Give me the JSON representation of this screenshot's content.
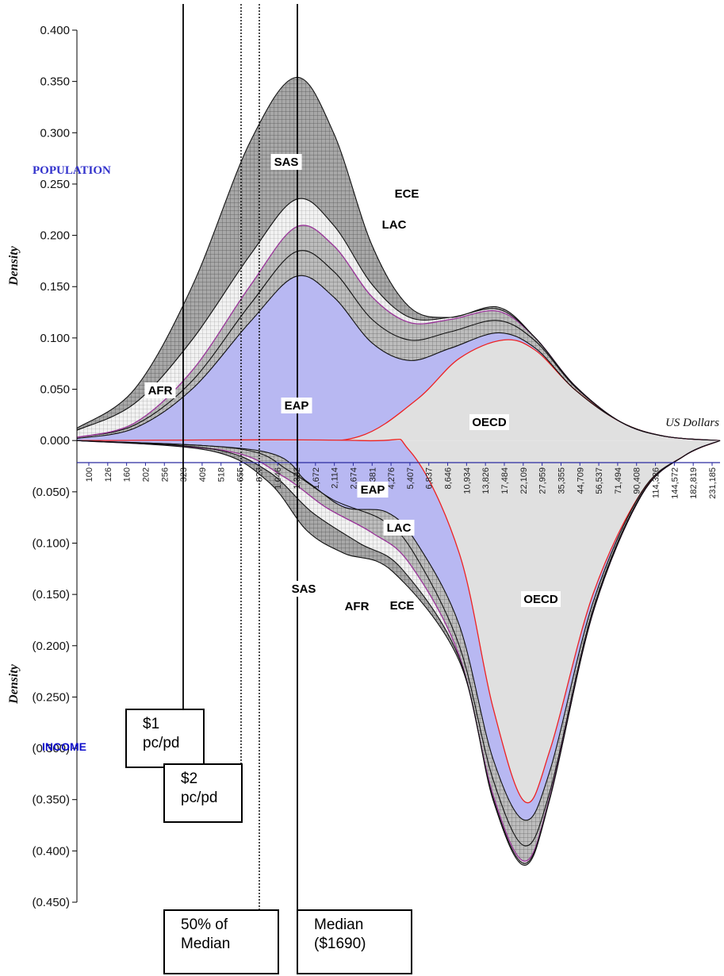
{
  "chart_data": {
    "type": "area",
    "title": "",
    "xlabel": "US Dollars",
    "ylabel": "Density",
    "ylim": [
      -0.45,
      0.4
    ],
    "yticks": [
      "0.400",
      "0.350",
      "0.300",
      "0.250",
      "0.200",
      "0.150",
      "0.100",
      "0.050",
      "0.000",
      "(0.050)",
      "(0.100)",
      "(0.150)",
      "(0.200)",
      "(0.250)",
      "(0.300)",
      "(0.350)",
      "(0.400)",
      "(0.450)"
    ],
    "ytick_values": [
      0.4,
      0.35,
      0.3,
      0.25,
      0.2,
      0.15,
      0.1,
      0.05,
      0,
      -0.05,
      -0.1,
      -0.15,
      -0.2,
      -0.25,
      -0.3,
      -0.35,
      -0.4,
      -0.45
    ],
    "x_scale": "log",
    "xticks": [
      "100",
      "126",
      "160",
      "202",
      "256",
      "323",
      "409",
      "518",
      "655",
      "827",
      "1,046",
      "1,322",
      "1,672",
      "2,114",
      "2,674",
      "3,381",
      "4,276",
      "5,407",
      "6,837",
      "8,646",
      "10,934",
      "13,826",
      "17,484",
      "22,109",
      "27,959",
      "35,355",
      "44,709",
      "56,537",
      "71,494",
      "90,408",
      "114,326",
      "144,572",
      "182,819",
      "231,185"
    ],
    "panel_labels": {
      "top": "POPULATION",
      "bottom": "INCOME"
    },
    "top_panel": {
      "series_order": [
        "OECD",
        "LAC",
        "EAP",
        "ECE",
        "AFR",
        "SAS"
      ],
      "cumulative_series": [
        {
          "name": "OECD",
          "points": [
            [
              100,
              0
            ],
            [
              1200,
              0
            ],
            [
              3000,
              0.004
            ],
            [
              6000,
              0.04
            ],
            [
              10000,
              0.08
            ],
            [
              17000,
              0.098
            ],
            [
              25000,
              0.088
            ],
            [
              40000,
              0.05
            ],
            [
              70000,
              0.018
            ],
            [
              120000,
              0.004
            ],
            [
              231185,
              0
            ]
          ]
        },
        {
          "name": "LAC",
          "points": [
            [
              100,
              0.002
            ],
            [
              200,
              0.012
            ],
            [
              400,
              0.05
            ],
            [
              800,
              0.115
            ],
            [
              1400,
              0.16
            ],
            [
              2200,
              0.14
            ],
            [
              3500,
              0.095
            ],
            [
              5500,
              0.078
            ],
            [
              9000,
              0.09
            ],
            [
              16000,
              0.105
            ],
            [
              25000,
              0.09
            ],
            [
              40000,
              0.05
            ],
            [
              70000,
              0.018
            ],
            [
              120000,
              0.004
            ],
            [
              231185,
              0
            ]
          ]
        },
        {
          "name": "EAP",
          "points": [
            [
              100,
              0.003
            ],
            [
              200,
              0.015
            ],
            [
              400,
              0.058
            ],
            [
              800,
              0.132
            ],
            [
              1400,
              0.184
            ],
            [
              2200,
              0.165
            ],
            [
              3500,
              0.118
            ],
            [
              5500,
              0.098
            ],
            [
              9000,
              0.106
            ],
            [
              16000,
              0.117
            ],
            [
              25000,
              0.097
            ],
            [
              40000,
              0.053
            ],
            [
              70000,
              0.018
            ],
            [
              120000,
              0.004
            ],
            [
              231185,
              0
            ]
          ]
        },
        {
          "name": "ECE",
          "points": [
            [
              100,
              0.003
            ],
            [
              200,
              0.017
            ],
            [
              400,
              0.068
            ],
            [
              800,
              0.15
            ],
            [
              1400,
              0.208
            ],
            [
              2200,
              0.19
            ],
            [
              3500,
              0.14
            ],
            [
              5500,
              0.115
            ],
            [
              9000,
              0.118
            ],
            [
              16000,
              0.126
            ],
            [
              25000,
              0.1
            ],
            [
              40000,
              0.054
            ],
            [
              70000,
              0.018
            ],
            [
              120000,
              0.004
            ],
            [
              231185,
              0
            ]
          ]
        },
        {
          "name": "AFR",
          "points": [
            [
              100,
              0.01
            ],
            [
              200,
              0.036
            ],
            [
              400,
              0.098
            ],
            [
              800,
              0.18
            ],
            [
              1400,
              0.235
            ],
            [
              2200,
              0.21
            ],
            [
              3500,
              0.152
            ],
            [
              5500,
              0.12
            ],
            [
              9000,
              0.12
            ],
            [
              16000,
              0.128
            ],
            [
              25000,
              0.1
            ],
            [
              40000,
              0.054
            ],
            [
              70000,
              0.018
            ],
            [
              120000,
              0.004
            ],
            [
              231185,
              0
            ]
          ]
        },
        {
          "name": "SAS",
          "points": [
            [
              100,
              0.012
            ],
            [
              200,
              0.05
            ],
            [
              400,
              0.15
            ],
            [
              800,
              0.29
            ],
            [
              1400,
              0.354
            ],
            [
              2200,
              0.3
            ],
            [
              3500,
              0.19
            ],
            [
              5500,
              0.13
            ],
            [
              9000,
              0.12
            ],
            [
              16000,
              0.13
            ],
            [
              25000,
              0.1
            ],
            [
              40000,
              0.054
            ],
            [
              70000,
              0.018
            ],
            [
              120000,
              0.004
            ],
            [
              231185,
              0
            ]
          ]
        }
      ]
    },
    "bottom_panel": {
      "series_order": [
        "OECD",
        "LAC",
        "EAP",
        "ECE",
        "AFR",
        "SAS"
      ],
      "cumulative_series": [
        {
          "name": "OECD",
          "points": [
            [
              100,
              0
            ],
            [
              3000,
              0
            ],
            [
              5500,
              -0.01
            ],
            [
              10000,
              -0.11
            ],
            [
              15000,
              -0.26
            ],
            [
              22000,
              -0.352
            ],
            [
              30000,
              -0.3
            ],
            [
              50000,
              -0.15
            ],
            [
              90000,
              -0.05
            ],
            [
              150000,
              -0.015
            ],
            [
              231185,
              0
            ]
          ]
        },
        {
          "name": "LAC",
          "points": [
            [
              100,
              0
            ],
            [
              900,
              -0.01
            ],
            [
              1600,
              -0.04
            ],
            [
              2500,
              -0.065
            ],
            [
              4200,
              -0.07
            ],
            [
              6000,
              -0.1
            ],
            [
              10000,
              -0.18
            ],
            [
              15000,
              -0.31
            ],
            [
              22000,
              -0.37
            ],
            [
              30000,
              -0.32
            ],
            [
              50000,
              -0.158
            ],
            [
              90000,
              -0.05
            ],
            [
              150000,
              -0.015
            ],
            [
              231185,
              0
            ]
          ]
        },
        {
          "name": "EAP",
          "points": [
            [
              100,
              0
            ],
            [
              700,
              -0.008
            ],
            [
              1300,
              -0.03
            ],
            [
              2200,
              -0.058
            ],
            [
              4000,
              -0.078
            ],
            [
              5800,
              -0.11
            ],
            [
              10000,
              -0.2
            ],
            [
              15000,
              -0.33
            ],
            [
              22000,
              -0.395
            ],
            [
              30000,
              -0.34
            ],
            [
              50000,
              -0.165
            ],
            [
              90000,
              -0.052
            ],
            [
              150000,
              -0.015
            ],
            [
              231185,
              0
            ]
          ]
        },
        {
          "name": "ECE",
          "points": [
            [
              100,
              0
            ],
            [
              600,
              -0.01
            ],
            [
              1200,
              -0.035
            ],
            [
              2000,
              -0.065
            ],
            [
              3500,
              -0.09
            ],
            [
              5500,
              -0.12
            ],
            [
              10000,
              -0.21
            ],
            [
              15000,
              -0.345
            ],
            [
              22000,
              -0.41
            ],
            [
              30000,
              -0.345
            ],
            [
              50000,
              -0.168
            ],
            [
              90000,
              -0.053
            ],
            [
              150000,
              -0.015
            ],
            [
              231185,
              0
            ]
          ]
        },
        {
          "name": "AFR",
          "points": [
            [
              100,
              0
            ],
            [
              500,
              -0.008
            ],
            [
              1000,
              -0.03
            ],
            [
              1700,
              -0.07
            ],
            [
              3000,
              -0.1
            ],
            [
              5000,
              -0.125
            ],
            [
              10000,
              -0.212
            ],
            [
              15000,
              -0.348
            ],
            [
              22000,
              -0.412
            ],
            [
              30000,
              -0.346
            ],
            [
              50000,
              -0.168
            ],
            [
              90000,
              -0.053
            ],
            [
              150000,
              -0.015
            ],
            [
              231185,
              0
            ]
          ]
        },
        {
          "name": "SAS",
          "points": [
            [
              100,
              0
            ],
            [
              500,
              -0.01
            ],
            [
              1000,
              -0.04
            ],
            [
              1600,
              -0.088
            ],
            [
              2500,
              -0.11
            ],
            [
              4500,
              -0.128
            ],
            [
              10000,
              -0.215
            ],
            [
              15000,
              -0.35
            ],
            [
              22000,
              -0.414
            ],
            [
              30000,
              -0.347
            ],
            [
              50000,
              -0.168
            ],
            [
              90000,
              -0.053
            ],
            [
              150000,
              -0.015
            ],
            [
              231185,
              0
            ]
          ]
        }
      ]
    },
    "region_labels": [
      {
        "text": "SAS",
        "panel": "top",
        "x": 1180,
        "y": 0.27
      },
      {
        "text": "ECE",
        "panel": "top",
        "x": 4100,
        "y": 0.102
      },
      {
        "text": "LAC",
        "panel": "top",
        "x": 4300,
        "y": 0.072
      },
      {
        "text": "AFR",
        "panel": "top",
        "x": 330,
        "y": 0.035
      },
      {
        "text": "EAP",
        "panel": "top",
        "x": 1500,
        "y": 0.04
      },
      {
        "text": "OECD",
        "panel": "top",
        "x": 17500,
        "y": 0.033
      },
      {
        "text": "EAP",
        "panel": "bottom",
        "x": 2400,
        "y": -0.03
      },
      {
        "text": "LAC",
        "panel": "bottom",
        "x": 4300,
        "y": -0.062
      },
      {
        "text": "SAS",
        "panel": "bottom",
        "x": 1250,
        "y": -0.09
      },
      {
        "text": "AFR",
        "panel": "bottom",
        "x": 2500,
        "y": -0.102
      },
      {
        "text": "ECE",
        "panel": "bottom",
        "x": 4300,
        "y": -0.1
      },
      {
        "text": "OECD",
        "panel": "bottom",
        "x": 30000,
        "y": -0.087
      }
    ],
    "reference_lines": [
      {
        "name": "$1 pc/pd",
        "x": 365,
        "style": "solid"
      },
      {
        "name": "$2 pc/pd",
        "x": 730,
        "style": "dotted"
      },
      {
        "name": "50% of Median",
        "x": 845,
        "style": "dotted"
      },
      {
        "name": "Median ($1690)",
        "x": 1690,
        "style": "solid"
      }
    ],
    "annotations": [
      {
        "id": "one-dollar",
        "lines": [
          "$1",
          "pc/pd"
        ]
      },
      {
        "id": "two-dollar",
        "lines": [
          "$2",
          "pc/pd"
        ]
      },
      {
        "id": "half-median",
        "lines": [
          "50% of",
          "Median"
        ]
      },
      {
        "id": "median",
        "lines": [
          "Median",
          "($1690)"
        ]
      }
    ],
    "colors": {
      "OECD": "#e0e0e0",
      "LAC": "#9999ee",
      "EAP": "#b8b8b8",
      "ECE": "#cccccc",
      "AFR": "#efefef",
      "SAS": "#9c9c9c",
      "OECD_edge": "#ee2222",
      "ECE_edge": "#993399",
      "LAC_fill": "#b8b8f2"
    }
  }
}
